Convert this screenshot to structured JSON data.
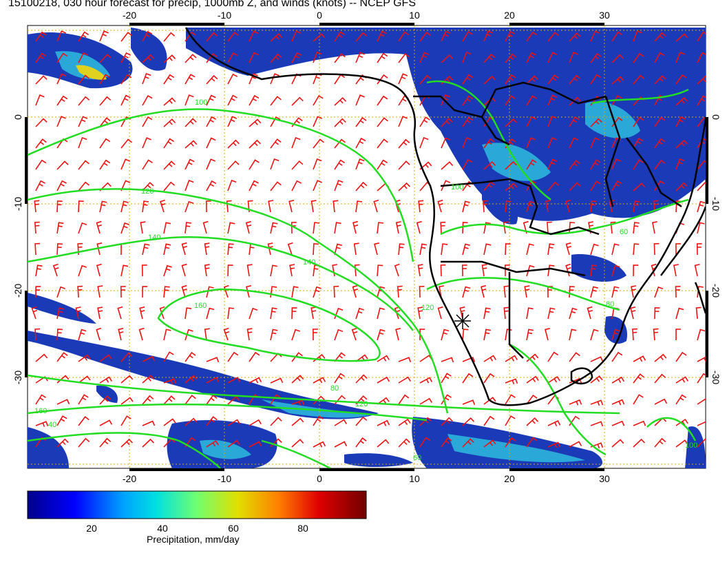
{
  "title": "15100218, 030 hour forecast for precip, 1000mb Z, and winds (knots) -- NCEP GFS",
  "map": {
    "lon_range": [
      -30,
      41
    ],
    "lat_range": [
      -40,
      11
    ],
    "lon_ticks": [
      "-20",
      "-10",
      "0",
      "10",
      "20",
      "30"
    ],
    "lat_ticks": [
      "0",
      "-10",
      "-20",
      "-30"
    ],
    "gridlines": true,
    "contour_labels": [
      "100",
      "120",
      "140",
      "140",
      "160",
      "120",
      "100",
      "100",
      "40",
      "60",
      "80",
      "120",
      "160",
      "60",
      "80"
    ],
    "colors": {
      "contour": "#22dd22",
      "barb": "#ee1111",
      "coast": "#000000",
      "grid": "#d8a800"
    }
  },
  "colorbar": {
    "title": "Precipitation, mm/day",
    "ticks": [
      "20",
      "40",
      "60",
      "80"
    ],
    "range": [
      0,
      100
    ]
  }
}
